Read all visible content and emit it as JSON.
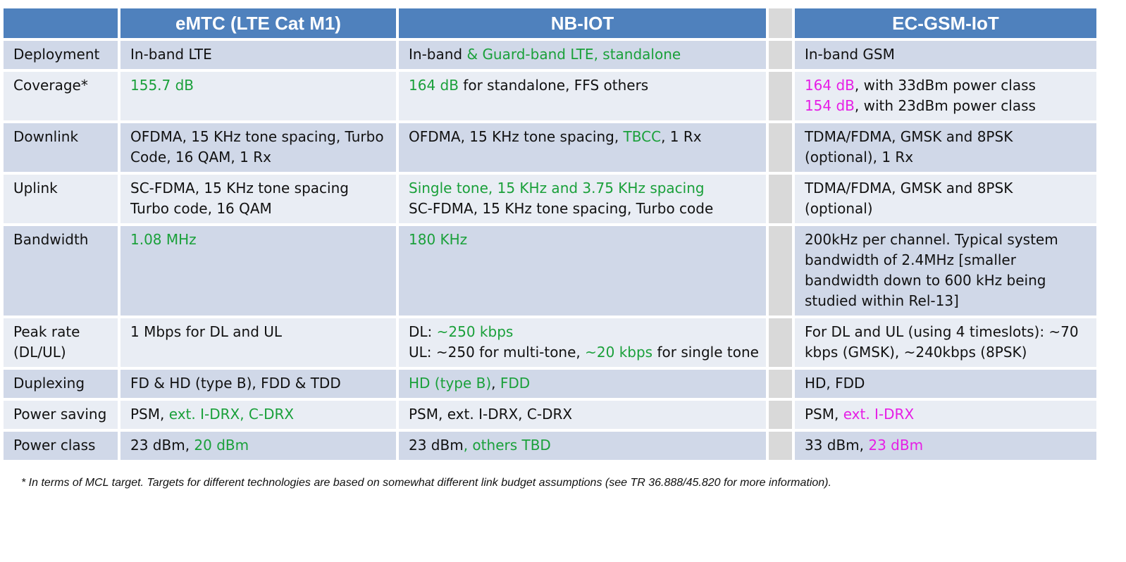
{
  "colors": {
    "header_bg": "#4f81bd",
    "header_text": "#ffffff",
    "row_dark": "#d0d8e8",
    "row_light": "#e9edf4",
    "separator_column": "#d9d9d9",
    "highlight_green": "#1aa03a",
    "highlight_magenta": "#e61ee6"
  },
  "columns": [
    "",
    "eMTC (LTE Cat M1)",
    "NB-IOT",
    "",
    "EC-GSM-IoT"
  ],
  "rows": [
    {
      "label": [
        "Deployment"
      ],
      "emtc": [
        [
          {
            "t": "In-band LTE"
          }
        ]
      ],
      "nbiot": [
        [
          {
            "t": "In-band "
          },
          {
            "t": "& Guard-band LTE, standalone",
            "c": "g"
          }
        ]
      ],
      "ecgsm": [
        [
          {
            "t": "In-band GSM"
          }
        ]
      ]
    },
    {
      "label": [
        "Coverage*"
      ],
      "emtc": [
        [
          {
            "t": "155.7 dB",
            "c": "g"
          }
        ]
      ],
      "nbiot": [
        [
          {
            "t": "164 dB",
            "c": "g"
          },
          {
            "t": " for standalone, FFS others"
          }
        ]
      ],
      "ecgsm": [
        [
          {
            "t": "164 dB",
            "c": "m"
          },
          {
            "t": ", with 33dBm power class"
          }
        ],
        [
          {
            "t": "154 dB",
            "c": "m"
          },
          {
            "t": ", with 23dBm power class"
          }
        ]
      ]
    },
    {
      "label": [
        "Downlink"
      ],
      "emtc": [
        [
          {
            "t": "OFDMA, 15 KHz tone spacing, Turbo"
          }
        ],
        [
          {
            "t": "Code, 16 QAM, 1 Rx"
          }
        ]
      ],
      "nbiot": [
        [
          {
            "t": "OFDMA, 15 KHz tone spacing, "
          },
          {
            "t": "TBCC",
            "c": "g"
          },
          {
            "t": ", 1 Rx"
          }
        ]
      ],
      "ecgsm": [
        [
          {
            "t": "TDMA/FDMA, GMSK and 8PSK"
          }
        ],
        [
          {
            "t": "(optional), 1 Rx"
          }
        ]
      ]
    },
    {
      "label": [
        "Uplink"
      ],
      "emtc": [
        [
          {
            "t": "SC-FDMA, 15 KHz tone spacing"
          }
        ],
        [
          {
            "t": "Turbo code, 16 QAM"
          }
        ]
      ],
      "nbiot": [
        [
          {
            "t": "Single tone, 15 KHz and 3.75 KHz spacing",
            "c": "g"
          }
        ],
        [
          {
            "t": "SC-FDMA, 15 KHz tone spacing, Turbo code"
          }
        ]
      ],
      "ecgsm": [
        [
          {
            "t": "TDMA/FDMA, GMSK and 8PSK"
          }
        ],
        [
          {
            "t": "(optional)"
          }
        ]
      ]
    },
    {
      "label": [
        "Bandwidth"
      ],
      "emtc": [
        [
          {
            "t": "1.08 MHz",
            "c": "g"
          }
        ]
      ],
      "nbiot": [
        [
          {
            "t": "180 KHz",
            "c": "g"
          }
        ]
      ],
      "ecgsm": [
        [
          {
            "t": "200kHz per channel. Typical system"
          }
        ],
        [
          {
            "t": "bandwidth of 2.4MHz [smaller"
          }
        ],
        [
          {
            "t": "bandwidth down to 600 kHz being"
          }
        ],
        [
          {
            "t": "studied within Rel-13]"
          }
        ]
      ]
    },
    {
      "label": [
        "Peak rate",
        "(DL/UL)"
      ],
      "emtc": [
        [
          {
            "t": "1 Mbps for DL and UL"
          }
        ]
      ],
      "nbiot": [
        [
          {
            "t": "DL: "
          },
          {
            "t": "~250 kbps",
            "c": "g"
          }
        ],
        [
          {
            "t": "UL: ~250 for multi-tone, "
          },
          {
            "t": "~20 kbps",
            "c": "g"
          },
          {
            "t": " for single tone"
          }
        ]
      ],
      "ecgsm": [
        [
          {
            "t": "For DL and UL (using 4 timeslots): ~70"
          }
        ],
        [
          {
            "t": "kbps (GMSK), ~240kbps (8PSK)"
          }
        ]
      ]
    },
    {
      "label": [
        "Duplexing"
      ],
      "emtc": [
        [
          {
            "t": "FD & HD (type B), FDD & TDD"
          }
        ]
      ],
      "nbiot": [
        [
          {
            "t": "HD (type B)",
            "c": "g"
          },
          {
            "t": ", "
          },
          {
            "t": "FDD",
            "c": "g"
          }
        ]
      ],
      "ecgsm": [
        [
          {
            "t": "HD, FDD"
          }
        ]
      ]
    },
    {
      "label": [
        "Power saving"
      ],
      "emtc": [
        [
          {
            "t": "PSM, "
          },
          {
            "t": "ext. I-DRX, C-DRX",
            "c": "g"
          }
        ]
      ],
      "nbiot": [
        [
          {
            "t": "PSM, ext. I-DRX, C-DRX"
          }
        ]
      ],
      "ecgsm": [
        [
          {
            "t": "PSM, "
          },
          {
            "t": "ext. I-DRX",
            "c": "m"
          }
        ]
      ]
    },
    {
      "label": [
        "Power class"
      ],
      "emtc": [
        [
          {
            "t": "23 dBm, "
          },
          {
            "t": "20 dBm",
            "c": "g"
          }
        ]
      ],
      "nbiot": [
        [
          {
            "t": "23 dBm"
          },
          {
            "t": ", others TBD",
            "c": "g"
          }
        ]
      ],
      "ecgsm": [
        [
          {
            "t": "33 dBm, "
          },
          {
            "t": "23 dBm",
            "c": "m"
          }
        ]
      ]
    }
  ],
  "footnote": "* In terms of MCL target. Targets for different technologies are based on somewhat different link budget assumptions (see TR 36.888/45.820 for more information)."
}
